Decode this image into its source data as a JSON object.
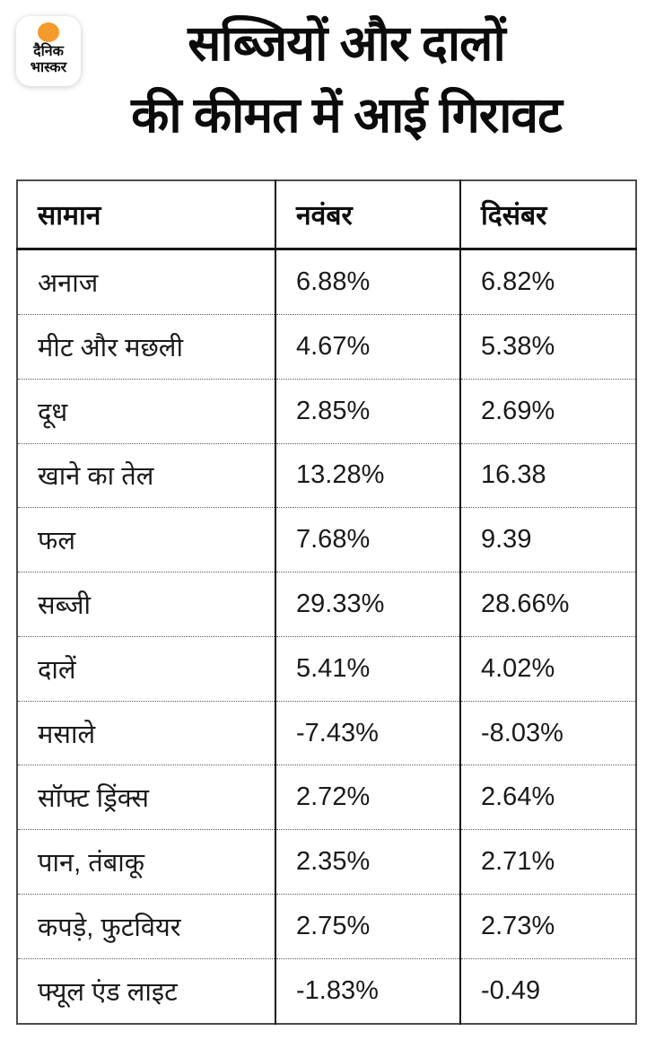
{
  "brand": {
    "logo_line1": "दैनिक",
    "logo_line2": "भास्कर",
    "accent_color": "#f39b2d"
  },
  "title": {
    "line1": "सब्जियों और दालों",
    "line2": "की कीमत में आई गिरावट"
  },
  "table": {
    "headers": [
      "सामान",
      "नवंबर",
      "दिसंबर"
    ],
    "rows": [
      {
        "item": "अनाज",
        "november": "6.88%",
        "december": "6.82%"
      },
      {
        "item": "मीट और मछली",
        "november": "4.67%",
        "december": "5.38%"
      },
      {
        "item": "दूध",
        "november": "2.85%",
        "december": "2.69%"
      },
      {
        "item": "खाने का तेल",
        "november": "13.28%",
        "december": "16.38"
      },
      {
        "item": "फल",
        "november": "7.68%",
        "december": "9.39"
      },
      {
        "item": "सब्जी",
        "november": "29.33%",
        "december": "28.66%"
      },
      {
        "item": "दालें",
        "november": "5.41%",
        "december": "4.02%"
      },
      {
        "item": "मसाले",
        "november": "-7.43%",
        "december": "-8.03%"
      },
      {
        "item": "सॉफ्ट ड्रिंक्स",
        "november": "2.72%",
        "december": "2.64%"
      },
      {
        "item": "पान, तंबाकू",
        "november": "2.35%",
        "december": "2.71%"
      },
      {
        "item": "कपड़े, फुटवियर",
        "november": "2.75%",
        "december": "2.73%"
      },
      {
        "item": "फ्यूल एंड लाइट",
        "november": "-1.83%",
        "december": "-0.49"
      }
    ]
  },
  "chart_data": {
    "type": "table",
    "title": "सब्जियों और दालों की कीमत में आई गिरावट",
    "columns": [
      "सामान",
      "नवंबर",
      "दिसंबर"
    ],
    "categories": [
      "अनाज",
      "मीट और मछली",
      "दूध",
      "खाने का तेल",
      "फल",
      "सब्जी",
      "दालें",
      "मसाले",
      "सॉफ्ट ड्रिंक्स",
      "पान, तंबाकू",
      "कपड़े, फुटवियर",
      "फ्यूल एंड लाइट"
    ],
    "series": [
      {
        "name": "नवंबर",
        "values": [
          6.88,
          4.67,
          2.85,
          13.28,
          7.68,
          29.33,
          5.41,
          -7.43,
          2.72,
          2.35,
          2.75,
          -1.83
        ]
      },
      {
        "name": "दिसंबर",
        "values": [
          6.82,
          5.38,
          2.69,
          16.38,
          9.39,
          28.66,
          4.02,
          -8.03,
          2.64,
          2.71,
          2.73,
          -0.49
        ]
      }
    ],
    "unit": "%"
  }
}
